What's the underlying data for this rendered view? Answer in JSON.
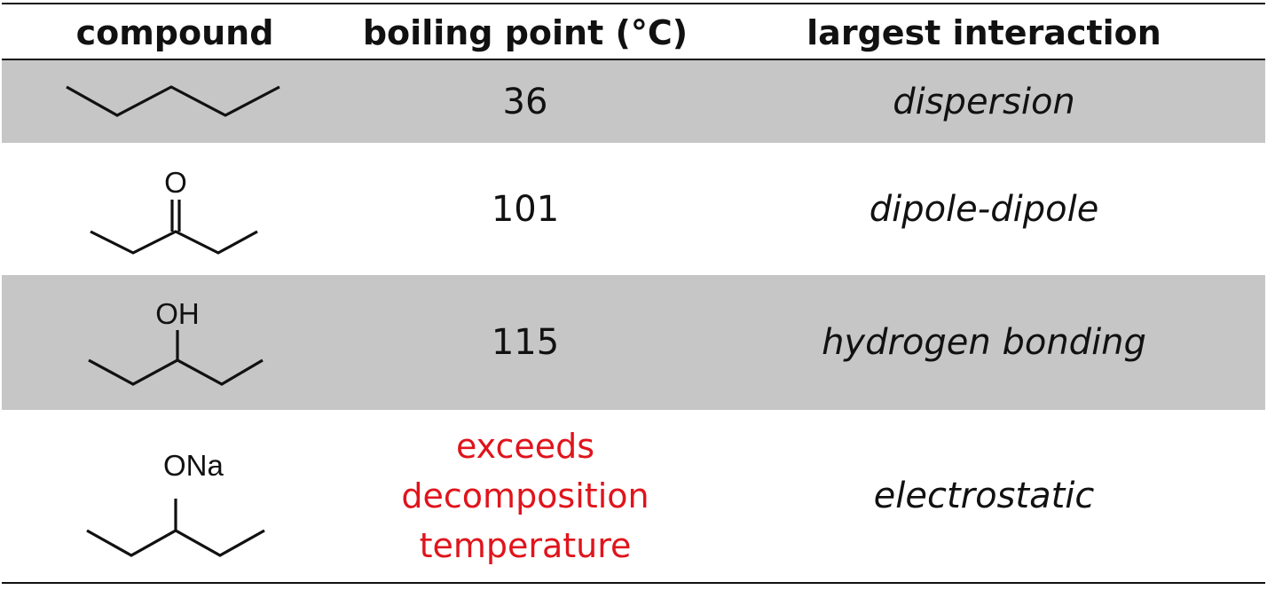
{
  "header": {
    "col_compound": "compound",
    "col_boiling": "boiling point (°C)",
    "col_interaction": "largest interaction"
  },
  "rows": [
    {
      "structure_icon": "pentane-skeletal-structure",
      "atom_label": "",
      "boiling_point": "36",
      "interaction": "dispersion",
      "shaded": true
    },
    {
      "structure_icon": "3-pentanone-skeletal-structure",
      "atom_label": "O",
      "boiling_point": "101",
      "interaction": "dipole-dipole",
      "shaded": false
    },
    {
      "structure_icon": "3-pentanol-skeletal-structure",
      "atom_label": "OH",
      "boiling_point": "115",
      "interaction": "hydrogen bonding",
      "shaded": true
    },
    {
      "structure_icon": "sodium-3-pentoxide-skeletal-structure",
      "atom_label": "ONa",
      "boiling_point_lines": [
        "exceeds",
        "decomposition",
        "temperature"
      ],
      "interaction": "electrostatic",
      "shaded": false
    }
  ],
  "colors": {
    "shade": "#c6c6c6",
    "warning_text": "#e0141c",
    "text": "#111111"
  }
}
